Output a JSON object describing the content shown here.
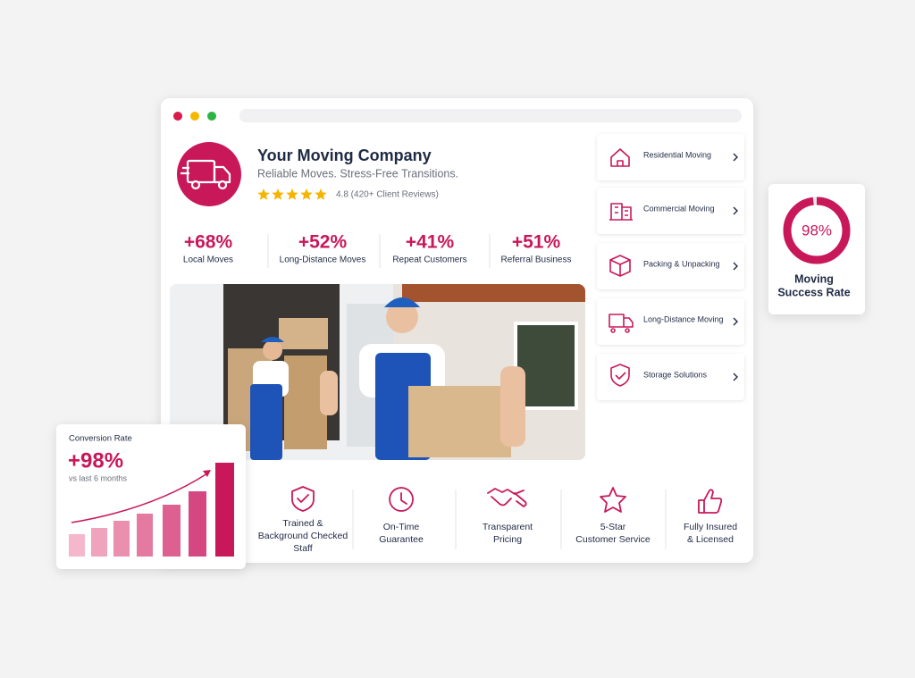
{
  "company": {
    "name": "Your Moving Company",
    "tagline": "Reliable Moves. Stress-Free Transitions.",
    "rating": "4.8 (420+ Client Reviews)"
  },
  "stats": [
    {
      "value": "+68%",
      "label": "Local Moves"
    },
    {
      "value": "+52%",
      "label": "Long-Distance Moves"
    },
    {
      "value": "+41%",
      "label": "Repeat Customers"
    },
    {
      "value": "+51%",
      "label": "Referral Business"
    }
  ],
  "services": [
    "Residential Moving",
    "Commercial Moving",
    "Packing & Unpacking",
    "Long-Distance Moving",
    "Storage Solutions"
  ],
  "features": [
    [
      "Trained &",
      "Background Checked",
      "Staff"
    ],
    [
      "On-Time",
      "Guarantee"
    ],
    [
      "Transparent",
      "Pricing"
    ],
    [
      "5-Star",
      "Customer Service"
    ],
    [
      "Fully Insured",
      "& Licensed"
    ]
  ],
  "success_rate": {
    "value": 98,
    "label": "98%",
    "caption": [
      "Moving",
      "Success Rate"
    ]
  },
  "conversion": {
    "title": "Conversion Rate",
    "value": "+98%",
    "subtitle": "vs last 6 months"
  }
}
